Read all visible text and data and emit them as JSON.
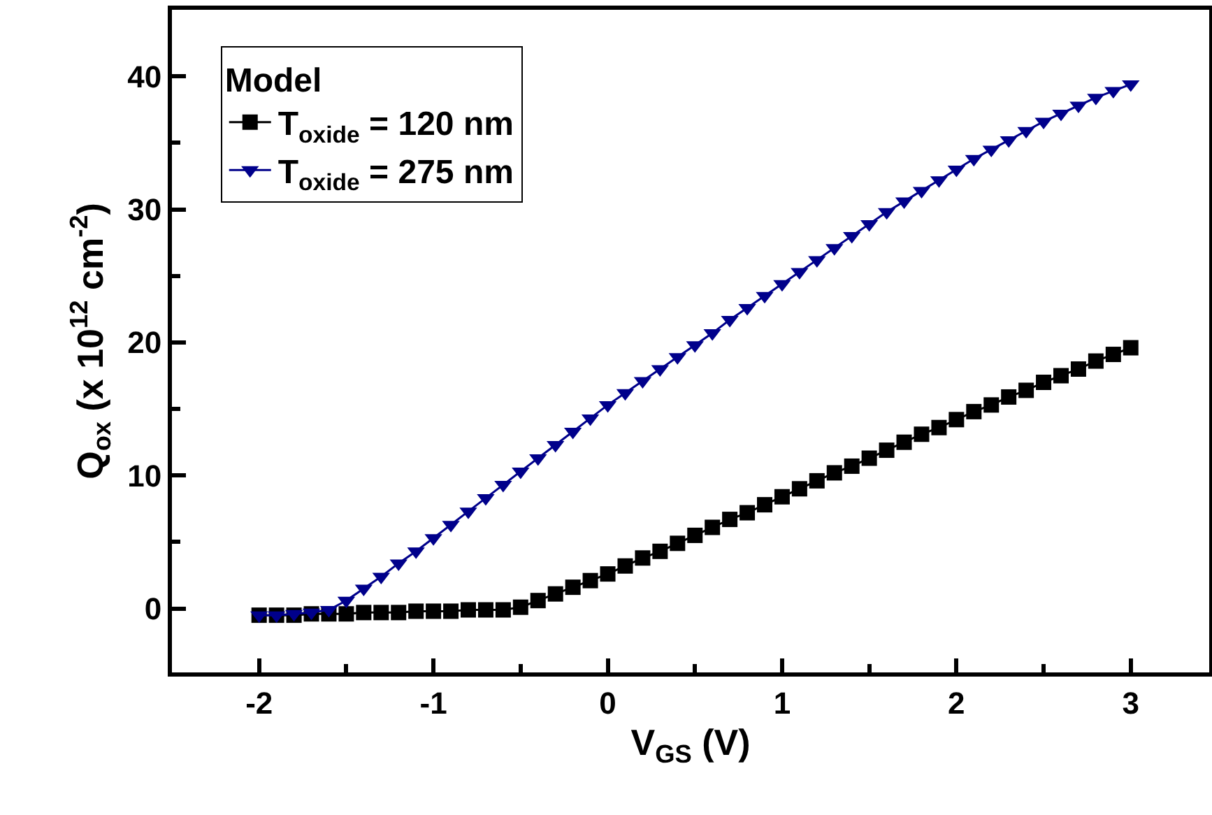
{
  "chart_data": {
    "type": "line",
    "xlabel": "V$_{GS}$ (V)",
    "ylabel": "Q$_{ox}$ (x 10$^{12}$ cm$^{-2}$)",
    "legend_title": "Model",
    "legend": "top left",
    "grid": false,
    "line_style": "solid",
    "x": [
      -2,
      -1.9,
      -1.8,
      -1.7,
      -1.6,
      -1.5,
      -1.4,
      -1.3,
      -1.2,
      -1.1,
      -1,
      -0.9,
      -0.8,
      -0.7,
      -0.6,
      -0.5,
      -0.4,
      -0.3,
      -0.2,
      -0.1,
      0,
      0.1,
      0.2,
      0.3,
      0.4,
      0.5,
      0.6,
      0.7,
      0.8,
      0.9,
      1,
      1.1,
      1.2,
      1.3,
      1.4,
      1.5,
      1.6,
      1.7,
      1.8,
      1.9,
      2,
      2.1,
      2.2,
      2.3,
      2.4,
      2.5,
      2.6,
      2.7,
      2.8,
      2.9,
      3
    ],
    "series": [
      {
        "name": "T$_{oxide}$ = 120 nm",
        "color": "#000000",
        "marker": "square",
        "values": [
          -0.5,
          -0.5,
          -0.5,
          -0.4,
          -0.4,
          -0.4,
          -0.3,
          -0.3,
          -0.3,
          -0.2,
          -0.2,
          -0.2,
          -0.1,
          -0.1,
          -0.1,
          0.1,
          0.6,
          1.1,
          1.6,
          2.1,
          2.6,
          3.2,
          3.8,
          4.3,
          4.9,
          5.5,
          6.1,
          6.7,
          7.2,
          7.8,
          8.4,
          9.0,
          9.6,
          10.2,
          10.7,
          11.3,
          11.9,
          12.5,
          13.1,
          13.6,
          14.2,
          14.8,
          15.3,
          15.9,
          16.4,
          17.0,
          17.5,
          18.0,
          18.6,
          19.1,
          19.6
        ]
      },
      {
        "name": "T$_{oxide}$ = 275 nm",
        "color": "#00008b",
        "marker": "triangle",
        "values": [
          -0.5,
          -0.5,
          -0.4,
          -0.3,
          -0.1,
          0.6,
          1.5,
          2.4,
          3.4,
          4.3,
          5.3,
          6.3,
          7.3,
          8.3,
          9.3,
          10.3,
          11.3,
          12.3,
          13.3,
          14.3,
          15.3,
          16.2,
          17.1,
          18.0,
          18.9,
          19.8,
          20.7,
          21.7,
          22.6,
          23.5,
          24.4,
          25.3,
          26.2,
          27.1,
          28.0,
          28.9,
          29.8,
          30.6,
          31.4,
          32.2,
          33.0,
          33.8,
          34.5,
          35.2,
          35.9,
          36.6,
          37.2,
          37.8,
          38.4,
          38.9,
          39.4
        ]
      }
    ],
    "xlim": [
      -2.5,
      3.45
    ],
    "xticks": [
      -2,
      -1,
      0,
      1,
      2,
      3
    ],
    "ylim": [
      -4.8,
      45
    ],
    "yticks": [
      0,
      10,
      20,
      30,
      40
    ]
  }
}
